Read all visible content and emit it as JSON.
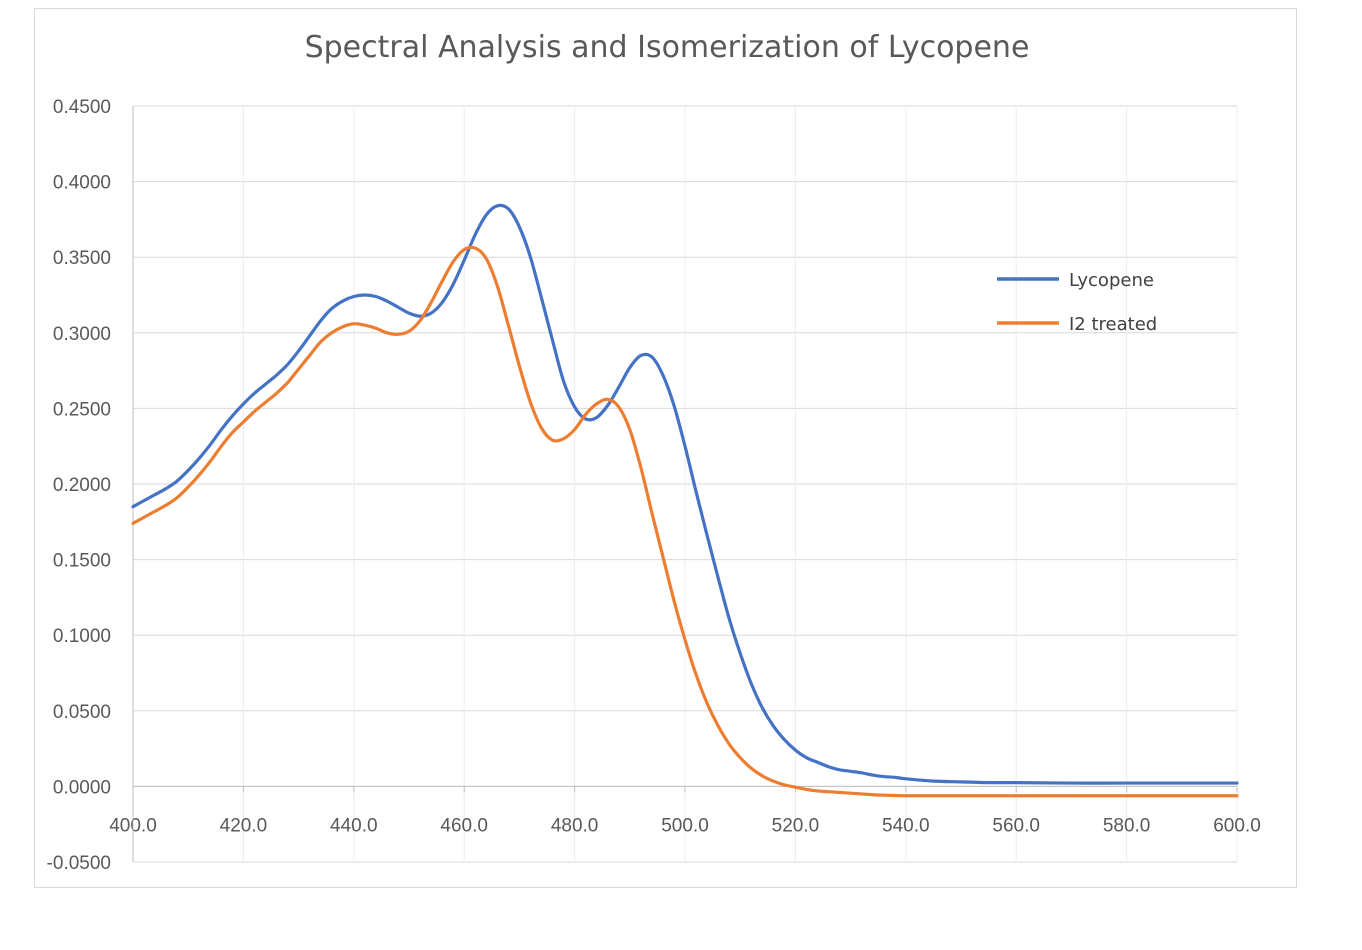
{
  "chart_data": {
    "type": "line",
    "title": "Spectral Analysis and Isomerization of Lycopene",
    "xlabel": "",
    "ylabel": "",
    "xlim": [
      400,
      600
    ],
    "ylim": [
      -0.05,
      0.45
    ],
    "xticks": [
      400,
      420,
      440,
      460,
      480,
      500,
      520,
      540,
      560,
      580,
      600
    ],
    "xtick_labels": [
      "400.0",
      "420.0",
      "440.0",
      "460.0",
      "480.0",
      "500.0",
      "520.0",
      "540.0",
      "560.0",
      "580.0",
      "600.0"
    ],
    "yticks": [
      -0.05,
      0,
      0.05,
      0.1,
      0.15,
      0.2,
      0.25,
      0.3,
      0.35,
      0.4,
      0.45
    ],
    "ytick_labels": [
      "-0.0500",
      "0.0000",
      "0.0500",
      "0.1000",
      "0.1500",
      "0.2000",
      "0.2500",
      "0.3000",
      "0.3500",
      "0.4000",
      "0.4500"
    ],
    "grid": true,
    "legend_position": "right",
    "x": [
      400,
      402,
      404,
      406,
      408,
      410,
      412,
      414,
      416,
      418,
      420,
      422,
      424,
      426,
      428,
      430,
      432,
      434,
      436,
      438,
      440,
      442,
      444,
      446,
      448,
      450,
      452,
      454,
      456,
      458,
      460,
      462,
      464,
      466,
      468,
      470,
      472,
      474,
      476,
      478,
      480,
      482,
      484,
      486,
      488,
      490,
      492,
      494,
      496,
      498,
      500,
      502,
      504,
      506,
      508,
      510,
      512,
      514,
      516,
      518,
      520,
      522,
      524,
      526,
      528,
      530,
      532,
      534,
      536,
      538,
      540,
      545,
      550,
      555,
      560,
      570,
      580,
      590,
      600
    ],
    "series": [
      {
        "name": "Lycopene",
        "color": "#4472c4",
        "values": [
          0.185,
          0.189,
          0.193,
          0.197,
          0.202,
          0.209,
          0.217,
          0.226,
          0.236,
          0.245,
          0.253,
          0.26,
          0.266,
          0.272,
          0.279,
          0.288,
          0.298,
          0.308,
          0.316,
          0.321,
          0.324,
          0.325,
          0.324,
          0.321,
          0.317,
          0.313,
          0.311,
          0.313,
          0.32,
          0.332,
          0.348,
          0.365,
          0.378,
          0.384,
          0.382,
          0.37,
          0.35,
          0.323,
          0.295,
          0.268,
          0.251,
          0.243,
          0.244,
          0.252,
          0.264,
          0.277,
          0.285,
          0.284,
          0.272,
          0.252,
          0.225,
          0.195,
          0.166,
          0.138,
          0.111,
          0.088,
          0.068,
          0.052,
          0.04,
          0.031,
          0.024,
          0.019,
          0.016,
          0.013,
          0.011,
          0.01,
          0.009,
          0.0075,
          0.0065,
          0.006,
          0.005,
          0.0035,
          0.003,
          0.0025,
          0.0025,
          0.0022,
          0.0022,
          0.0022,
          0.0022
        ]
      },
      {
        "name": "I2 treated",
        "color": "#ed7d31",
        "values": [
          0.174,
          0.178,
          0.182,
          0.186,
          0.191,
          0.198,
          0.206,
          0.215,
          0.225,
          0.234,
          0.241,
          0.248,
          0.254,
          0.26,
          0.267,
          0.276,
          0.285,
          0.294,
          0.3,
          0.304,
          0.306,
          0.305,
          0.303,
          0.3,
          0.299,
          0.301,
          0.308,
          0.32,
          0.334,
          0.347,
          0.355,
          0.356,
          0.349,
          0.331,
          0.305,
          0.278,
          0.254,
          0.237,
          0.229,
          0.23,
          0.236,
          0.246,
          0.253,
          0.256,
          0.251,
          0.236,
          0.211,
          0.181,
          0.152,
          0.123,
          0.097,
          0.074,
          0.055,
          0.04,
          0.028,
          0.019,
          0.012,
          0.007,
          0.0035,
          0.001,
          -0.0005,
          -0.002,
          -0.003,
          -0.0035,
          -0.004,
          -0.0045,
          -0.005,
          -0.0055,
          -0.0058,
          -0.006,
          -0.0062,
          -0.0062,
          -0.0062,
          -0.0062,
          -0.0062,
          -0.0062,
          -0.0062,
          -0.0062,
          -0.0062
        ]
      }
    ]
  }
}
